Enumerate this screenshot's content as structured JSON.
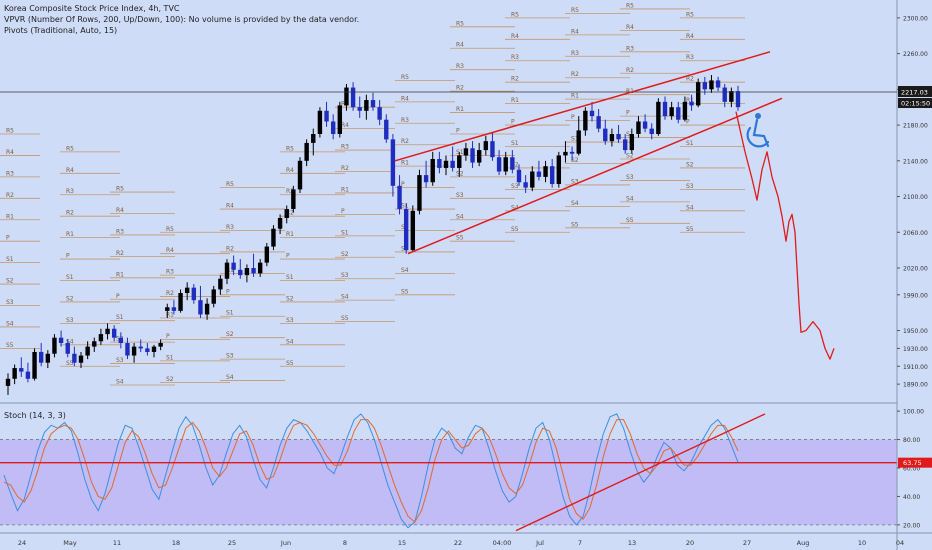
{
  "legend": {
    "title": "Korea Composite Stock Price Index, 4h, TVC",
    "vpvr": "VPVR (Number Of Rows, 200, Up/Down, 100): No volume is provided by the data vendor.",
    "pivots": "Pivots (Traditional, Auto, 15)",
    "stoch": "Stoch (14, 3, 3)"
  },
  "price_tags": {
    "last": "2217.03",
    "countdown": "02:15:50"
  },
  "stoch_tag": "63.75",
  "colors": {
    "bg": "#cfdcf7",
    "up": "#000000",
    "down": "#1f2dbf",
    "pivot": "#c0874a",
    "trend": "#e01a1a",
    "forecast": "#e01a1a",
    "stoch_k": "#3d8fe0",
    "stoch_d": "#e06a30",
    "stoch_band": "#b7a0f5"
  },
  "chart_data": [
    {
      "type": "candlestick",
      "title": "Korea Composite Stock Price Index, 4h, TVC",
      "ylim": [
        1870,
        2320
      ],
      "y_ticks": [
        2300,
        2260,
        2220,
        2180,
        2140,
        2100,
        2060,
        2020,
        1990,
        1950,
        1930,
        1910,
        1890
      ],
      "y_tick_labels": [
        "2300.00",
        "2260.00",
        "2220.00",
        "2180.00",
        "2140.00",
        "2100.00",
        "2060.00",
        "2020.00",
        "1990.00",
        "1950.00",
        "1930.00",
        "1910.00",
        "1890.00"
      ],
      "x_labels": [
        "24",
        "May",
        "11",
        "18",
        "25",
        "Jun",
        "8",
        "15",
        "22",
        "04:00",
        "Jul",
        "7",
        "13",
        "20",
        "27",
        "Aug",
        "10",
        "04"
      ],
      "candles": [
        {
          "o": 1888,
          "h": 1902,
          "l": 1878,
          "c": 1896
        },
        {
          "o": 1896,
          "h": 1912,
          "l": 1890,
          "c": 1908
        },
        {
          "o": 1908,
          "h": 1920,
          "l": 1898,
          "c": 1904
        },
        {
          "o": 1904,
          "h": 1914,
          "l": 1892,
          "c": 1896
        },
        {
          "o": 1896,
          "h": 1930,
          "l": 1894,
          "c": 1926
        },
        {
          "o": 1926,
          "h": 1936,
          "l": 1910,
          "c": 1914
        },
        {
          "o": 1914,
          "h": 1928,
          "l": 1908,
          "c": 1924
        },
        {
          "o": 1924,
          "h": 1946,
          "l": 1920,
          "c": 1942
        },
        {
          "o": 1942,
          "h": 1950,
          "l": 1932,
          "c": 1936
        },
        {
          "o": 1936,
          "h": 1940,
          "l": 1920,
          "c": 1924
        },
        {
          "o": 1924,
          "h": 1932,
          "l": 1910,
          "c": 1914
        },
        {
          "o": 1914,
          "h": 1926,
          "l": 1908,
          "c": 1922
        },
        {
          "o": 1922,
          "h": 1938,
          "l": 1918,
          "c": 1932
        },
        {
          "o": 1932,
          "h": 1942,
          "l": 1926,
          "c": 1938
        },
        {
          "o": 1938,
          "h": 1952,
          "l": 1934,
          "c": 1946
        },
        {
          "o": 1946,
          "h": 1958,
          "l": 1940,
          "c": 1952
        },
        {
          "o": 1952,
          "h": 1956,
          "l": 1938,
          "c": 1942
        },
        {
          "o": 1942,
          "h": 1948,
          "l": 1930,
          "c": 1936
        },
        {
          "o": 1936,
          "h": 1942,
          "l": 1918,
          "c": 1922
        },
        {
          "o": 1922,
          "h": 1936,
          "l": 1914,
          "c": 1932
        },
        {
          "o": 1932,
          "h": 1940,
          "l": 1926,
          "c": 1930
        },
        {
          "o": 1930,
          "h": 1936,
          "l": 1922,
          "c": 1926
        },
        {
          "o": 1926,
          "h": 1934,
          "l": 1920,
          "c": 1932
        },
        {
          "o": 1932,
          "h": 1940,
          "l": 1928,
          "c": 1936
        },
        {
          "o": 1972,
          "h": 1980,
          "l": 1964,
          "c": 1976
        },
        {
          "o": 1976,
          "h": 1984,
          "l": 1968,
          "c": 1972
        },
        {
          "o": 1972,
          "h": 1996,
          "l": 1970,
          "c": 1992
        },
        {
          "o": 1992,
          "h": 2004,
          "l": 1984,
          "c": 1998
        },
        {
          "o": 1998,
          "h": 2002,
          "l": 1980,
          "c": 1984
        },
        {
          "o": 1984,
          "h": 2000,
          "l": 1964,
          "c": 1968
        },
        {
          "o": 1968,
          "h": 1986,
          "l": 1962,
          "c": 1980
        },
        {
          "o": 1980,
          "h": 2000,
          "l": 1976,
          "c": 1996
        },
        {
          "o": 1996,
          "h": 2012,
          "l": 1990,
          "c": 2008
        },
        {
          "o": 2008,
          "h": 2030,
          "l": 2002,
          "c": 2026
        },
        {
          "o": 2026,
          "h": 2034,
          "l": 2012,
          "c": 2018
        },
        {
          "o": 2018,
          "h": 2030,
          "l": 2008,
          "c": 2012
        },
        {
          "o": 2012,
          "h": 2024,
          "l": 2004,
          "c": 2020
        },
        {
          "o": 2020,
          "h": 2036,
          "l": 2010,
          "c": 2014
        },
        {
          "o": 2014,
          "h": 2030,
          "l": 2010,
          "c": 2026
        },
        {
          "o": 2026,
          "h": 2048,
          "l": 2022,
          "c": 2044
        },
        {
          "o": 2044,
          "h": 2068,
          "l": 2040,
          "c": 2064
        },
        {
          "o": 2064,
          "h": 2080,
          "l": 2058,
          "c": 2076
        },
        {
          "o": 2076,
          "h": 2090,
          "l": 2070,
          "c": 2086
        },
        {
          "o": 2086,
          "h": 2112,
          "l": 2082,
          "c": 2108
        },
        {
          "o": 2108,
          "h": 2144,
          "l": 2104,
          "c": 2140
        },
        {
          "o": 2140,
          "h": 2164,
          "l": 2134,
          "c": 2160
        },
        {
          "o": 2160,
          "h": 2176,
          "l": 2146,
          "c": 2170
        },
        {
          "o": 2170,
          "h": 2200,
          "l": 2166,
          "c": 2196
        },
        {
          "o": 2196,
          "h": 2206,
          "l": 2178,
          "c": 2184
        },
        {
          "o": 2184,
          "h": 2192,
          "l": 2164,
          "c": 2170
        },
        {
          "o": 2170,
          "h": 2206,
          "l": 2166,
          "c": 2202
        },
        {
          "o": 2202,
          "h": 2226,
          "l": 2196,
          "c": 2222
        },
        {
          "o": 2222,
          "h": 2228,
          "l": 2196,
          "c": 2200
        },
        {
          "o": 2200,
          "h": 2212,
          "l": 2188,
          "c": 2196
        },
        {
          "o": 2196,
          "h": 2214,
          "l": 2186,
          "c": 2208
        },
        {
          "o": 2208,
          "h": 2216,
          "l": 2196,
          "c": 2200
        },
        {
          "o": 2200,
          "h": 2208,
          "l": 2180,
          "c": 2186
        },
        {
          "o": 2186,
          "h": 2192,
          "l": 2160,
          "c": 2164
        },
        {
          "o": 2164,
          "h": 2170,
          "l": 2100,
          "c": 2112
        },
        {
          "o": 2112,
          "h": 2124,
          "l": 2080,
          "c": 2086
        },
        {
          "o": 2086,
          "h": 2092,
          "l": 2036,
          "c": 2040
        },
        {
          "o": 2040,
          "h": 2090,
          "l": 2038,
          "c": 2084
        },
        {
          "o": 2084,
          "h": 2130,
          "l": 2080,
          "c": 2124
        },
        {
          "o": 2124,
          "h": 2140,
          "l": 2110,
          "c": 2116
        },
        {
          "o": 2116,
          "h": 2150,
          "l": 2112,
          "c": 2142
        },
        {
          "o": 2142,
          "h": 2150,
          "l": 2126,
          "c": 2132
        },
        {
          "o": 2132,
          "h": 2146,
          "l": 2124,
          "c": 2140
        },
        {
          "o": 2140,
          "h": 2156,
          "l": 2128,
          "c": 2132
        },
        {
          "o": 2132,
          "h": 2150,
          "l": 2122,
          "c": 2146
        },
        {
          "o": 2146,
          "h": 2160,
          "l": 2140,
          "c": 2154
        },
        {
          "o": 2154,
          "h": 2162,
          "l": 2132,
          "c": 2138
        },
        {
          "o": 2138,
          "h": 2160,
          "l": 2134,
          "c": 2152
        },
        {
          "o": 2152,
          "h": 2168,
          "l": 2146,
          "c": 2162
        },
        {
          "o": 2162,
          "h": 2172,
          "l": 2140,
          "c": 2144
        },
        {
          "o": 2144,
          "h": 2152,
          "l": 2124,
          "c": 2128
        },
        {
          "o": 2128,
          "h": 2150,
          "l": 2124,
          "c": 2144
        },
        {
          "o": 2144,
          "h": 2152,
          "l": 2126,
          "c": 2130
        },
        {
          "o": 2130,
          "h": 2136,
          "l": 2112,
          "c": 2116
        },
        {
          "o": 2116,
          "h": 2124,
          "l": 2104,
          "c": 2110
        },
        {
          "o": 2110,
          "h": 2134,
          "l": 2106,
          "c": 2128
        },
        {
          "o": 2128,
          "h": 2140,
          "l": 2118,
          "c": 2122
        },
        {
          "o": 2122,
          "h": 2140,
          "l": 2116,
          "c": 2134
        },
        {
          "o": 2134,
          "h": 2142,
          "l": 2110,
          "c": 2114
        },
        {
          "o": 2114,
          "h": 2150,
          "l": 2110,
          "c": 2146
        },
        {
          "o": 2146,
          "h": 2162,
          "l": 2138,
          "c": 2150
        },
        {
          "o": 2150,
          "h": 2156,
          "l": 2140,
          "c": 2148
        },
        {
          "o": 2148,
          "h": 2190,
          "l": 2146,
          "c": 2174
        },
        {
          "o": 2174,
          "h": 2200,
          "l": 2168,
          "c": 2196
        },
        {
          "o": 2196,
          "h": 2206,
          "l": 2184,
          "c": 2190
        },
        {
          "o": 2190,
          "h": 2198,
          "l": 2172,
          "c": 2176
        },
        {
          "o": 2176,
          "h": 2186,
          "l": 2158,
          "c": 2162
        },
        {
          "o": 2162,
          "h": 2176,
          "l": 2156,
          "c": 2170
        },
        {
          "o": 2170,
          "h": 2180,
          "l": 2160,
          "c": 2164
        },
        {
          "o": 2164,
          "h": 2170,
          "l": 2148,
          "c": 2152
        },
        {
          "o": 2152,
          "h": 2176,
          "l": 2148,
          "c": 2170
        },
        {
          "o": 2170,
          "h": 2190,
          "l": 2166,
          "c": 2184
        },
        {
          "o": 2184,
          "h": 2192,
          "l": 2172,
          "c": 2176
        },
        {
          "o": 2176,
          "h": 2182,
          "l": 2164,
          "c": 2170
        },
        {
          "o": 2170,
          "h": 2210,
          "l": 2168,
          "c": 2206
        },
        {
          "o": 2206,
          "h": 2212,
          "l": 2186,
          "c": 2190
        },
        {
          "o": 2190,
          "h": 2206,
          "l": 2186,
          "c": 2200
        },
        {
          "o": 2200,
          "h": 2206,
          "l": 2182,
          "c": 2186
        },
        {
          "o": 2186,
          "h": 2212,
          "l": 2184,
          "c": 2206
        },
        {
          "o": 2206,
          "h": 2214,
          "l": 2196,
          "c": 2202
        },
        {
          "o": 2202,
          "h": 2232,
          "l": 2200,
          "c": 2228
        },
        {
          "o": 2228,
          "h": 2234,
          "l": 2214,
          "c": 2220
        },
        {
          "o": 2220,
          "h": 2236,
          "l": 2216,
          "c": 2230
        },
        {
          "o": 2230,
          "h": 2234,
          "l": 2218,
          "c": 2222
        },
        {
          "o": 2222,
          "h": 2226,
          "l": 2200,
          "c": 2206
        },
        {
          "o": 2206,
          "h": 2222,
          "l": 2200,
          "c": 2218
        },
        {
          "o": 2218,
          "h": 2224,
          "l": 2196,
          "c": 2200
        }
      ]
    },
    {
      "type": "line",
      "title": "Stoch (14, 3, 3)",
      "ylim": [
        15,
        105
      ],
      "y_ticks": [
        100,
        80,
        60,
        40,
        20
      ],
      "y_tick_labels": [
        "100.00",
        "80.00",
        "60.00",
        "40.00",
        "20.00"
      ],
      "band": [
        20,
        80
      ],
      "series": [
        {
          "values": [
            55,
            42,
            30,
            38,
            55,
            72,
            85,
            90,
            88,
            92,
            86,
            70,
            52,
            38,
            30,
            42,
            60,
            78,
            90,
            88,
            75,
            60,
            45,
            38,
            55,
            72,
            88,
            96,
            90,
            76,
            60,
            48,
            55,
            70,
            84,
            90,
            82,
            66,
            52,
            46,
            60,
            76,
            88,
            94,
            92,
            86,
            78,
            70,
            60,
            56,
            68,
            82,
            94,
            98,
            92,
            80,
            64,
            48,
            36,
            24,
            18,
            22,
            40,
            62,
            80,
            88,
            84,
            74,
            70,
            82,
            90,
            88,
            74,
            58,
            44,
            36,
            40,
            56,
            74,
            88,
            92,
            80,
            60,
            40,
            26,
            20,
            26,
            44,
            66,
            84,
            96,
            98,
            88,
            72,
            58,
            50,
            56,
            68,
            78,
            74,
            62,
            58,
            64,
            74,
            82,
            90,
            94,
            88,
            76,
            64
          ]
        },
        {
          "values": [
            50,
            48,
            40,
            36,
            44,
            58,
            74,
            84,
            88,
            90,
            88,
            80,
            66,
            50,
            40,
            38,
            46,
            62,
            78,
            86,
            82,
            70,
            56,
            46,
            48,
            60,
            74,
            88,
            92,
            86,
            74,
            60,
            54,
            60,
            72,
            84,
            86,
            76,
            62,
            52,
            54,
            66,
            80,
            90,
            92,
            90,
            84,
            76,
            68,
            62,
            62,
            72,
            86,
            94,
            94,
            88,
            76,
            62,
            48,
            36,
            26,
            22,
            30,
            46,
            66,
            80,
            86,
            80,
            74,
            76,
            84,
            88,
            82,
            70,
            56,
            46,
            42,
            48,
            62,
            78,
            88,
            86,
            74,
            56,
            38,
            28,
            24,
            32,
            48,
            68,
            84,
            94,
            94,
            84,
            70,
            60,
            56,
            62,
            72,
            74,
            68,
            62,
            62,
            68,
            76,
            84,
            90,
            90,
            82,
            72
          ]
        }
      ]
    }
  ]
}
